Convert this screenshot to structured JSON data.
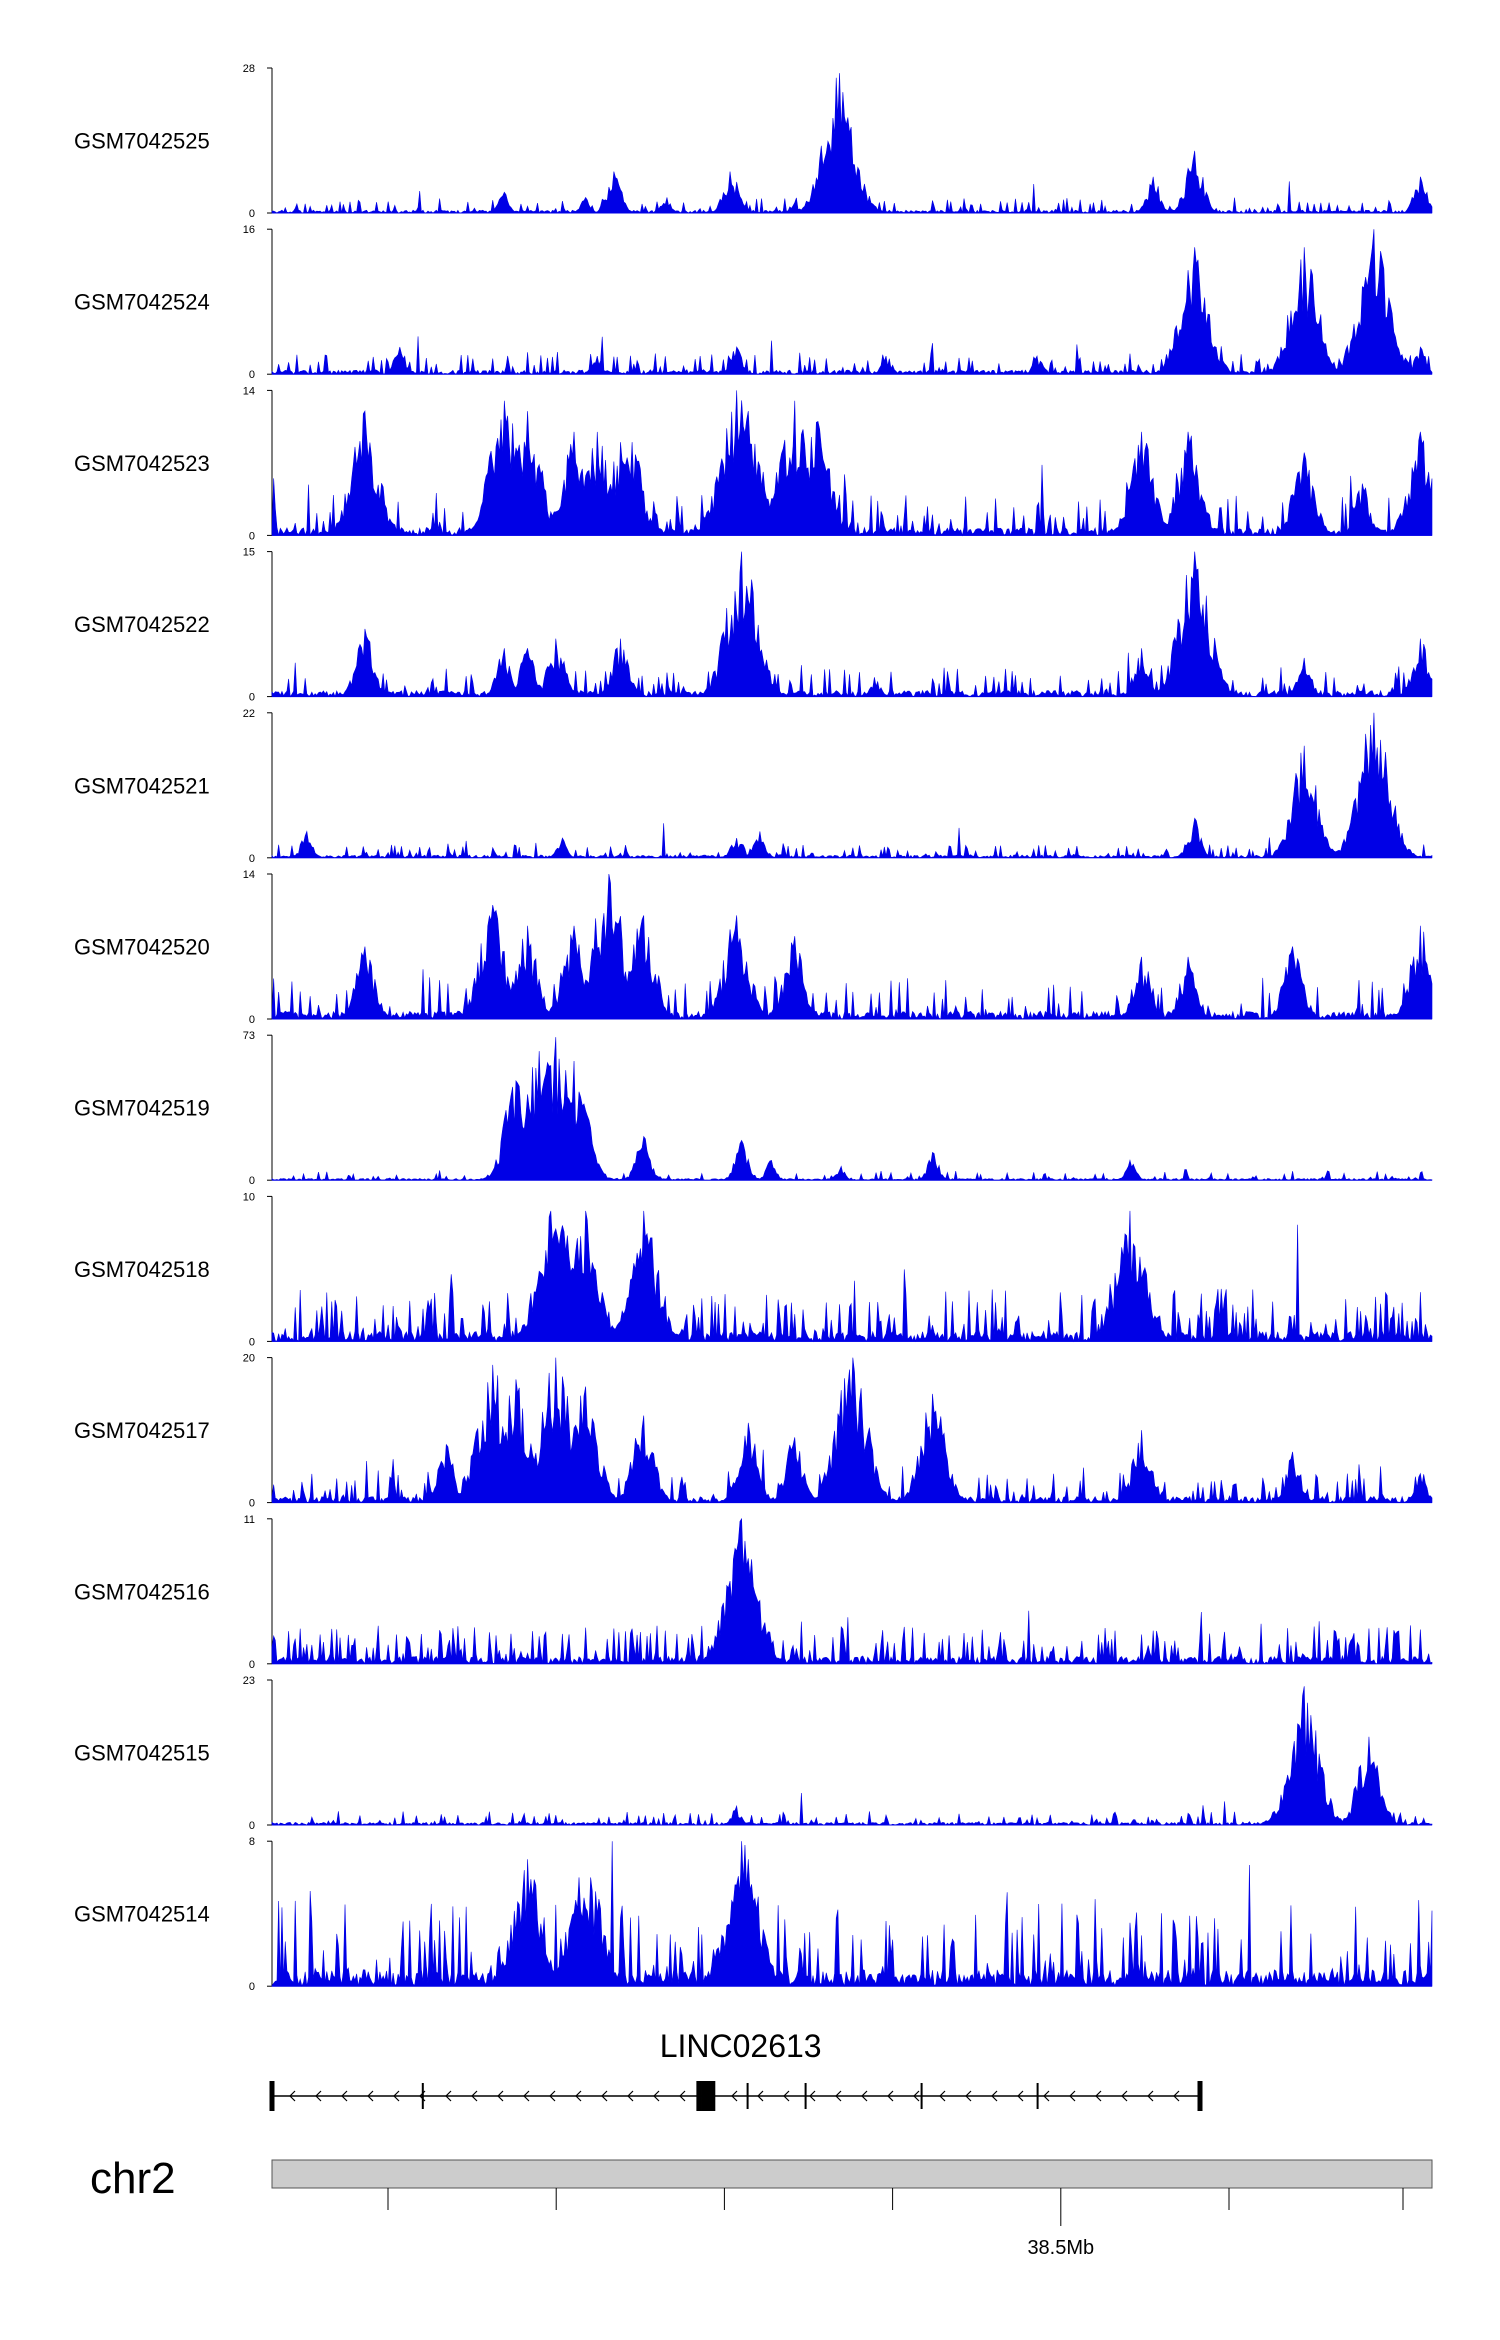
{
  "chart_data": {
    "type": "area",
    "color": "#0000e6",
    "tracks": [
      {
        "name": "GSM7042525",
        "ymax": 28,
        "ymin": 0,
        "peaks": [
          [
            0.2,
            4
          ],
          [
            0.197,
            3
          ],
          [
            0.2,
            0.5
          ],
          [
            0.27,
            3
          ],
          [
            0.295,
            8
          ],
          [
            0.34,
            3
          ],
          [
            0.395,
            8
          ],
          [
            0.4,
            6
          ],
          [
            0.45,
            2
          ],
          [
            0.485,
            13
          ],
          [
            0.489,
            27
          ],
          [
            0.494,
            10
          ],
          [
            0.76,
            7
          ],
          [
            0.795,
            12
          ],
          [
            0.99,
            7
          ]
        ],
        "noise": 1.6,
        "bursts": 0.55
      },
      {
        "name": "GSM7042524",
        "ymax": 16,
        "ymin": 0,
        "peaks": [
          [
            0.11,
            3
          ],
          [
            0.28,
            2
          ],
          [
            0.4,
            3
          ],
          [
            0.53,
            2
          ],
          [
            0.66,
            2
          ],
          [
            0.795,
            14
          ],
          [
            0.89,
            14
          ],
          [
            0.95,
            16
          ],
          [
            0.99,
            3
          ]
        ],
        "noise": 1.3,
        "bursts": 0.5
      },
      {
        "name": "GSM7042523",
        "ymax": 14,
        "ymin": 0,
        "peaks": [
          [
            0.08,
            12
          ],
          [
            0.2,
            13
          ],
          [
            0.22,
            12
          ],
          [
            0.26,
            10
          ],
          [
            0.28,
            10
          ],
          [
            0.3,
            9
          ],
          [
            0.31,
            9
          ],
          [
            0.4,
            14
          ],
          [
            0.41,
            12
          ],
          [
            0.45,
            13
          ],
          [
            0.47,
            11
          ],
          [
            0.75,
            10
          ],
          [
            0.79,
            10
          ],
          [
            0.89,
            8
          ],
          [
            0.94,
            5
          ],
          [
            0.99,
            10
          ]
        ],
        "noise": 2.2,
        "bursts": 0.6
      },
      {
        "name": "GSM7042522",
        "ymax": 15,
        "ymin": 0,
        "peaks": [
          [
            0.08,
            7
          ],
          [
            0.2,
            5
          ],
          [
            0.22,
            5
          ],
          [
            0.245,
            6
          ],
          [
            0.3,
            6
          ],
          [
            0.405,
            15
          ],
          [
            0.41,
            10
          ],
          [
            0.52,
            2
          ],
          [
            0.75,
            5
          ],
          [
            0.795,
            15
          ],
          [
            0.89,
            4
          ],
          [
            0.99,
            6
          ]
        ],
        "noise": 1.8,
        "bursts": 0.55
      },
      {
        "name": "GSM7042521",
        "ymax": 22,
        "ymin": 0,
        "peaks": [
          [
            0.03,
            4
          ],
          [
            0.25,
            3
          ],
          [
            0.4,
            3
          ],
          [
            0.42,
            4
          ],
          [
            0.795,
            6
          ],
          [
            0.89,
            17
          ],
          [
            0.95,
            22
          ]
        ],
        "noise": 1.2,
        "bursts": 0.5
      },
      {
        "name": "GSM7042520",
        "ymax": 14,
        "ymin": 0,
        "peaks": [
          [
            0.08,
            7
          ],
          [
            0.19,
            11
          ],
          [
            0.22,
            9
          ],
          [
            0.26,
            9
          ],
          [
            0.29,
            14
          ],
          [
            0.32,
            10
          ],
          [
            0.4,
            10
          ],
          [
            0.45,
            8
          ],
          [
            0.75,
            6
          ],
          [
            0.79,
            6
          ],
          [
            0.88,
            7
          ],
          [
            0.99,
            9
          ]
        ],
        "noise": 2.2,
        "bursts": 0.6
      },
      {
        "name": "GSM7042519",
        "ymax": 73,
        "ymin": 0,
        "peaks": [
          [
            0.21,
            50
          ],
          [
            0.23,
            65
          ],
          [
            0.245,
            72
          ],
          [
            0.26,
            60
          ],
          [
            0.27,
            35
          ],
          [
            0.32,
            22
          ],
          [
            0.405,
            20
          ],
          [
            0.43,
            10
          ],
          [
            0.49,
            7
          ],
          [
            0.57,
            14
          ],
          [
            0.74,
            10
          ]
        ],
        "noise": 2.5,
        "bursts": 0.4
      },
      {
        "name": "GSM7042518",
        "ymax": 10,
        "ymin": 0,
        "peaks": [
          [
            0.24,
            9
          ],
          [
            0.25,
            8
          ],
          [
            0.27,
            9
          ],
          [
            0.32,
            9
          ],
          [
            0.74,
            9
          ]
        ],
        "noise": 2.0,
        "bursts": 0.85
      },
      {
        "name": "GSM7042517",
        "ymax": 20,
        "ymin": 0,
        "peaks": [
          [
            0.15,
            8
          ],
          [
            0.19,
            19
          ],
          [
            0.21,
            17
          ],
          [
            0.245,
            20
          ],
          [
            0.27,
            16
          ],
          [
            0.32,
            12
          ],
          [
            0.41,
            11
          ],
          [
            0.45,
            9
          ],
          [
            0.5,
            20
          ],
          [
            0.57,
            15
          ],
          [
            0.75,
            10
          ],
          [
            0.88,
            7
          ],
          [
            0.99,
            4
          ]
        ],
        "noise": 2.4,
        "bursts": 0.6
      },
      {
        "name": "GSM7042516",
        "ymax": 11,
        "ymin": 0,
        "peaks": [
          [
            0.405,
            11
          ],
          [
            0.41,
            8
          ]
        ],
        "noise": 1.6,
        "bursts": 0.85
      },
      {
        "name": "GSM7042515",
        "ymax": 23,
        "ymin": 0,
        "peaks": [
          [
            0.4,
            3
          ],
          [
            0.89,
            22
          ],
          [
            0.945,
            14
          ]
        ],
        "noise": 1.2,
        "bursts": 0.55
      },
      {
        "name": "GSM7042514",
        "ymax": 8,
        "ymin": 0,
        "peaks": [
          [
            0.22,
            7
          ],
          [
            0.265,
            6
          ],
          [
            0.275,
            6
          ],
          [
            0.405,
            8
          ],
          [
            0.41,
            7
          ]
        ],
        "noise": 2.6,
        "bursts": 0.85
      }
    ],
    "gene": {
      "name": "LINC02613",
      "start": 0.0,
      "end": 0.8,
      "exons": [
        0.0,
        0.13,
        0.368,
        0.372,
        0.376,
        0.38,
        0.41,
        0.46,
        0.56,
        0.66,
        0.8
      ],
      "strand": "-"
    },
    "ideogram": {
      "chromosome": "chr2",
      "tick_positions": [
        0.1,
        0.245,
        0.39,
        0.535,
        0.68,
        0.825,
        0.975
      ],
      "labeled_tick": {
        "position": 0.68,
        "label": "38.5Mb"
      }
    }
  }
}
